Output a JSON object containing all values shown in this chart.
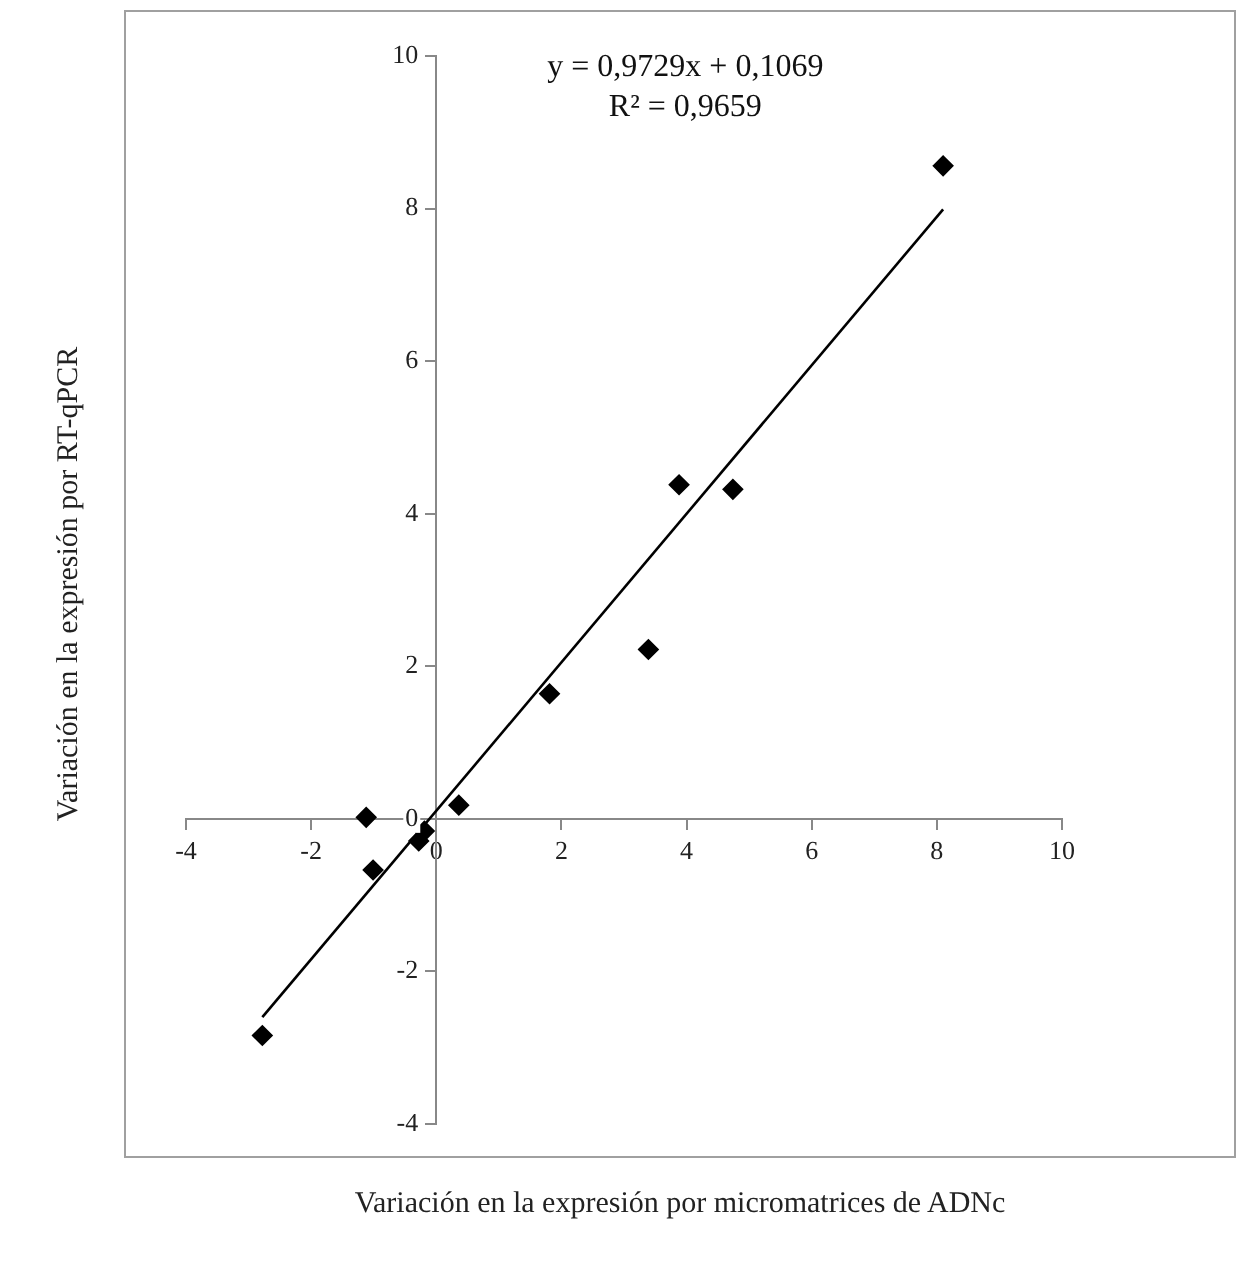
{
  "chart_data": {
    "type": "scatter",
    "xlabel": "Variación en la expresión por micromatrices  de ADNc",
    "ylabel": "Variación en la expresión por RT-qPCR",
    "annotations": [
      "y = 0,9729x + 0,1069",
      "R² = 0,9659"
    ],
    "x": [
      8.1,
      3.88,
      4.74,
      3.39,
      1.81,
      0.36,
      -1.12,
      -1.01,
      -0.28,
      -0.19,
      -2.78
    ],
    "series": [
      {
        "type": "scatter",
        "color": "#000000",
        "values": [
          8.56,
          4.38,
          4.32,
          2.22,
          1.64,
          0.18,
          0.02,
          -0.67,
          -0.29,
          -0.16,
          -2.84
        ]
      },
      {
        "type": "line",
        "color": "#000000",
        "x": [
          -2.78,
          8.1
        ],
        "values": [
          -2.6,
          7.99
        ],
        "marker": "none"
      }
    ],
    "xlim": [
      -4,
      10
    ],
    "ylim": [
      -4,
      10
    ],
    "xticks": [
      -4,
      -2,
      0,
      2,
      4,
      6,
      8,
      10
    ],
    "yticks": [
      -4,
      -2,
      0,
      2,
      4,
      6,
      8,
      10
    ],
    "marker": "diamond",
    "grid": false,
    "legend": false
  }
}
